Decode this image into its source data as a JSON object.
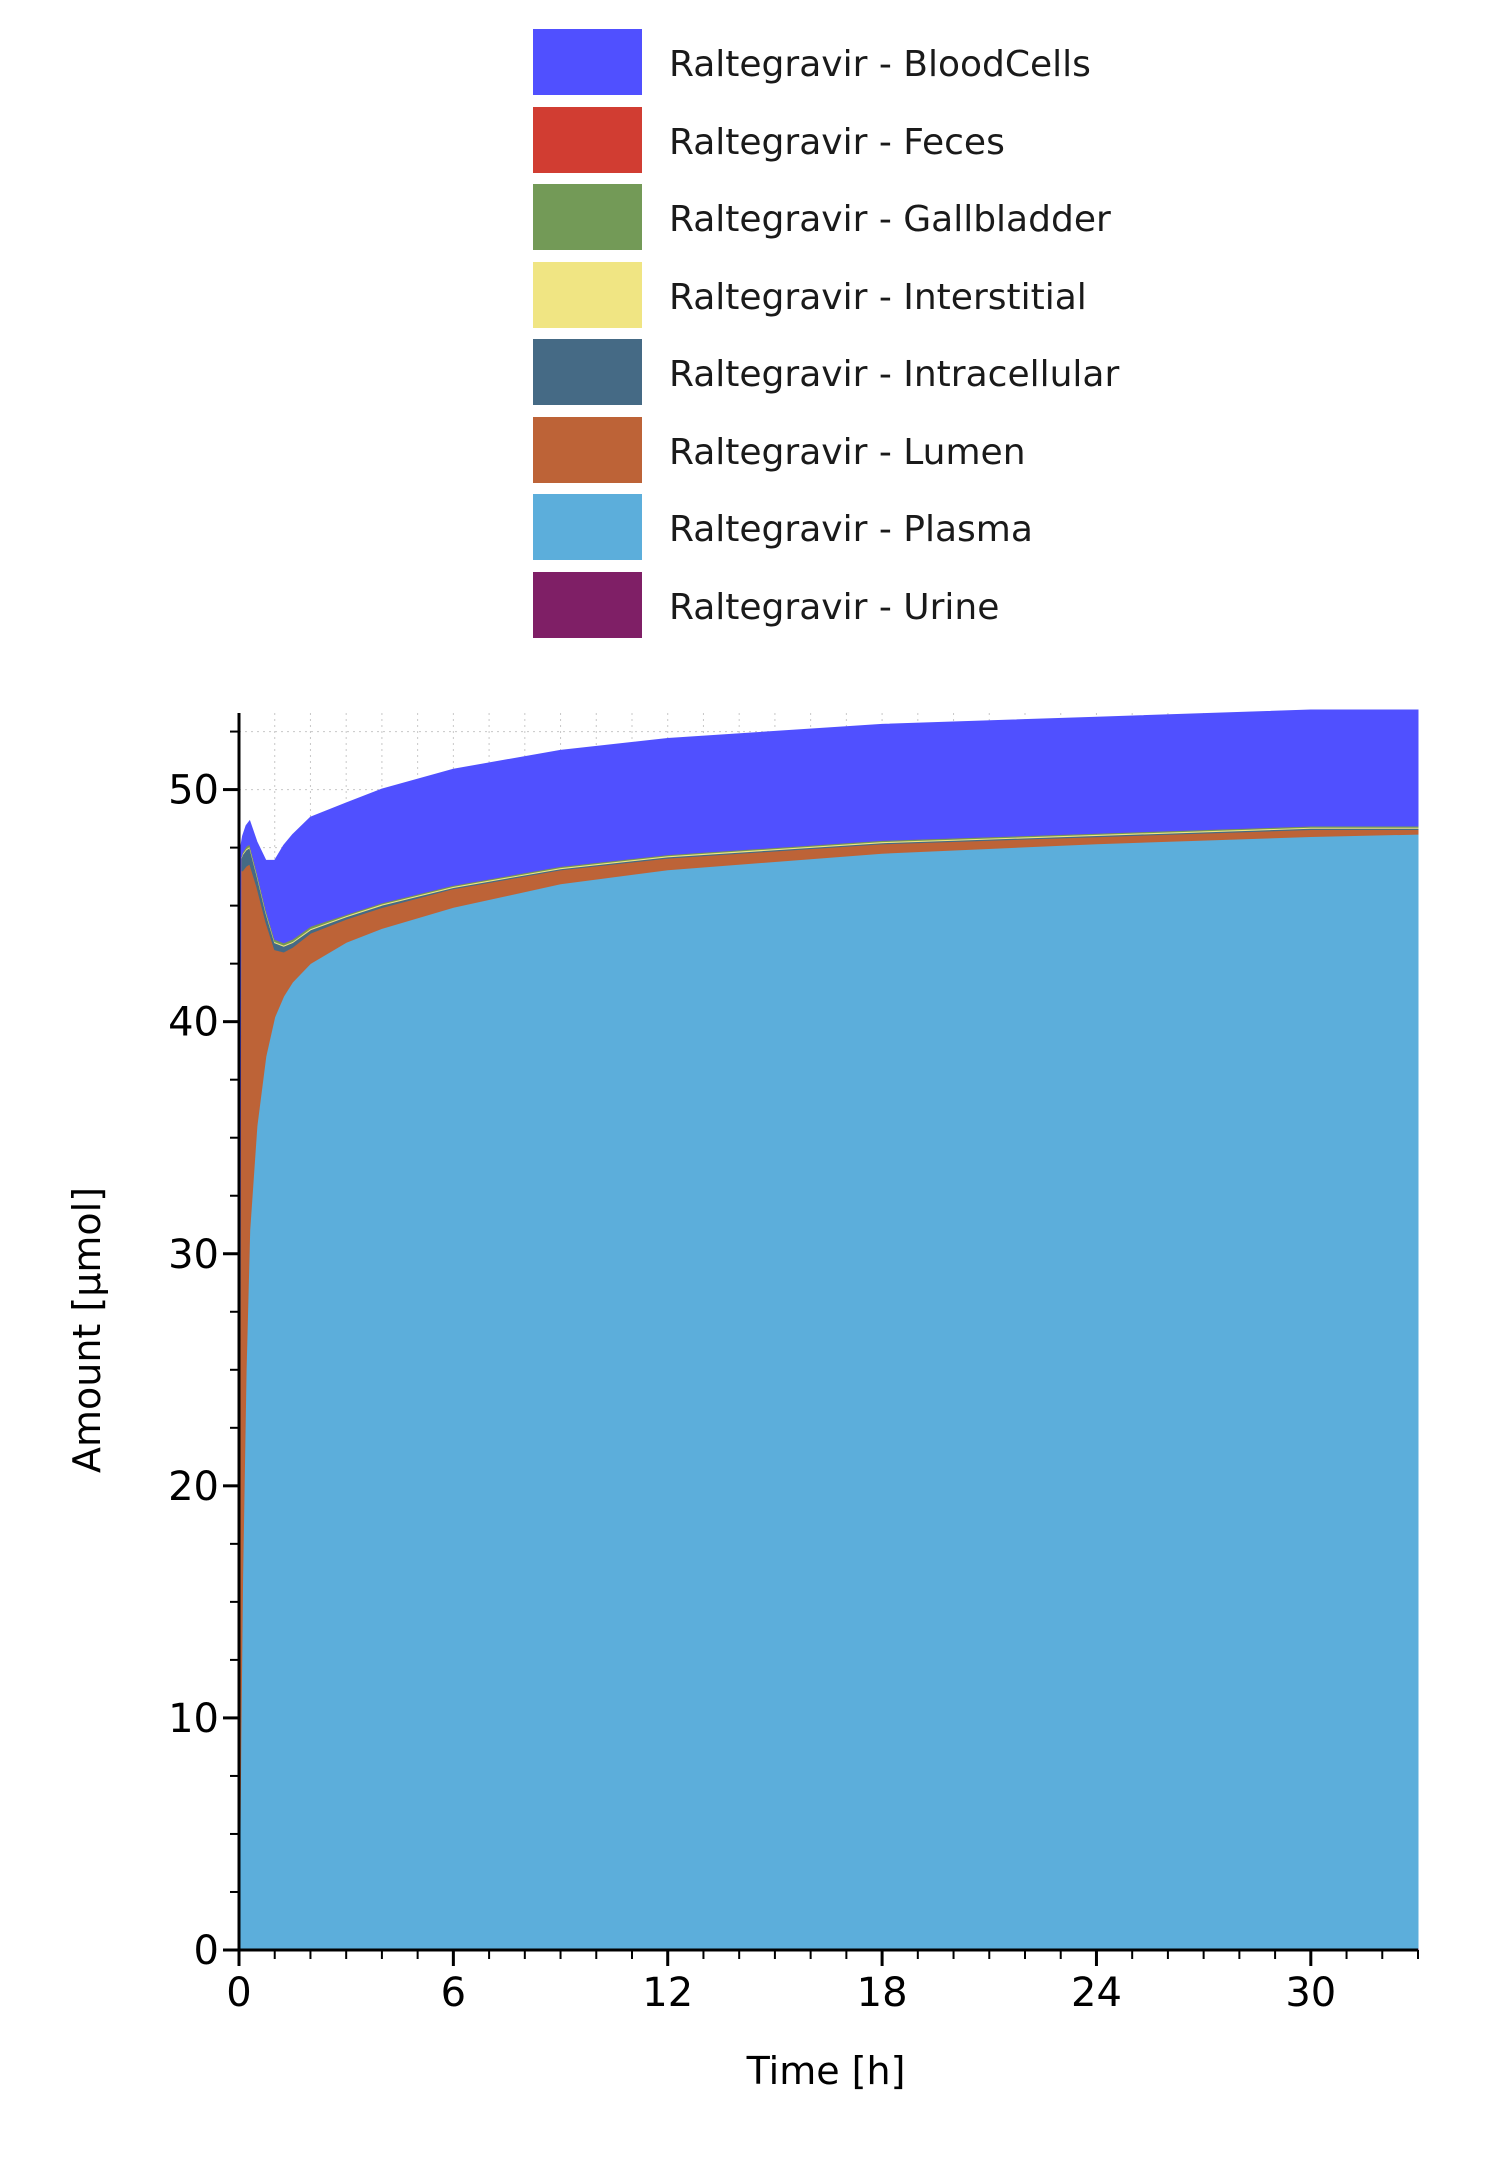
{
  "chart_data": {
    "type": "area",
    "stacked": true,
    "xlabel": "Time [h]",
    "ylabel": "Amount [µmol]",
    "xlim": [
      0,
      33
    ],
    "ylim": [
      0,
      53.3
    ],
    "xticks": [
      0,
      6,
      12,
      18,
      24,
      30
    ],
    "yticks": [
      0,
      10,
      20,
      30,
      40,
      50
    ],
    "grid": true,
    "legend_position": "top",
    "x": [
      0,
      0.05,
      0.1,
      0.2,
      0.3,
      0.5,
      0.75,
      1.0,
      1.25,
      1.5,
      2,
      3,
      4,
      6,
      9,
      12,
      18,
      24,
      30,
      33
    ],
    "series": [
      {
        "name": "Raltegravir - Urine",
        "color": "#7f1f66",
        "values": [
          0,
          0,
          0,
          0,
          0,
          0,
          0,
          0,
          0,
          0.01,
          0.01,
          0.02,
          0.02,
          0.03,
          0.04,
          0.05,
          0.06,
          0.07,
          0.08,
          0.08
        ]
      },
      {
        "name": "Raltegravir - Plasma",
        "color": "#5caedb",
        "values": [
          0,
          9,
          16,
          25,
          31,
          35.5,
          38.5,
          40.2,
          41.1,
          41.7,
          42.5,
          43.4,
          44.0,
          44.9,
          45.9,
          46.5,
          47.2,
          47.6,
          47.9,
          48.0
        ]
      },
      {
        "name": "Raltegravir - Lumen",
        "color": "#bd6337",
        "values": [
          0,
          37.5,
          30.5,
          21.7,
          15.8,
          10.3,
          5.8,
          2.9,
          1.9,
          1.5,
          1.3,
          1.0,
          0.9,
          0.8,
          0.6,
          0.5,
          0.4,
          0.3,
          0.3,
          0.2
        ]
      },
      {
        "name": "Raltegravir - Intracellular",
        "color": "#456a85",
        "values": [
          0,
          0.5,
          0.7,
          0.7,
          0.7,
          0.5,
          0.4,
          0.3,
          0.25,
          0.2,
          0.15,
          0.1,
          0.1,
          0.05,
          0.05,
          0.05,
          0.05,
          0.05,
          0.05,
          0.05
        ]
      },
      {
        "name": "Raltegravir - Interstitial",
        "color": "#f0e583",
        "values": [
          0,
          0.05,
          0.05,
          0.05,
          0.05,
          0.05,
          0.05,
          0.05,
          0.05,
          0.05,
          0.05,
          0.05,
          0.05,
          0.05,
          0.05,
          0.05,
          0.05,
          0.05,
          0.05,
          0.05
        ]
      },
      {
        "name": "Raltegravir - Gallbladder",
        "color": "#739a57",
        "values": [
          0,
          0,
          0.05,
          0.1,
          0.1,
          0.1,
          0.1,
          0.1,
          0.1,
          0.1,
          0.1,
          0.05,
          0.05,
          0.05,
          0.05,
          0.05,
          0.05,
          0.05,
          0.05,
          0.05
        ]
      },
      {
        "name": "Raltegravir - Feces",
        "color": "#d13d32",
        "values": [
          0,
          0,
          0,
          0,
          0,
          0,
          0,
          0,
          0,
          0,
          0,
          0,
          0,
          0,
          0,
          0,
          0,
          0,
          0,
          0
        ]
      },
      {
        "name": "Raltegravir - BloodCells",
        "color": "#5050ff",
        "values": [
          0,
          0.5,
          0.7,
          0.9,
          1.0,
          1.3,
          2.1,
          3.4,
          4.2,
          4.5,
          4.7,
          4.8,
          4.9,
          5.0,
          5.0,
          5.0,
          5.0,
          5.0,
          5.0,
          5.0
        ]
      }
    ]
  },
  "legend": [
    {
      "label": "Raltegravir - BloodCells",
      "color": "#5050ff"
    },
    {
      "label": "Raltegravir - Feces",
      "color": "#d13d32"
    },
    {
      "label": "Raltegravir - Gallbladder",
      "color": "#739a57"
    },
    {
      "label": "Raltegravir - Interstitial",
      "color": "#f0e583"
    },
    {
      "label": "Raltegravir - Intracellular",
      "color": "#456a85"
    },
    {
      "label": "Raltegravir - Lumen",
      "color": "#bd6337"
    },
    {
      "label": "Raltegravir - Plasma",
      "color": "#5caedb"
    },
    {
      "label": "Raltegravir - Urine",
      "color": "#7f1f66"
    }
  ]
}
